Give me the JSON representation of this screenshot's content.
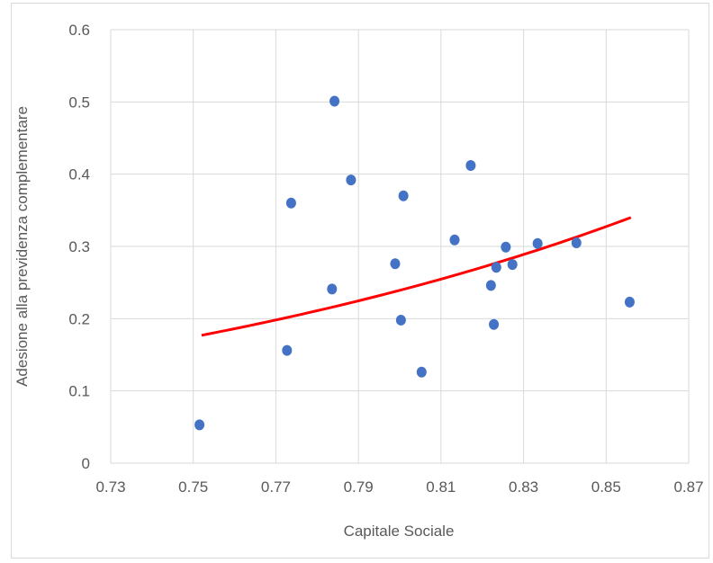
{
  "chart_data": {
    "type": "scatter",
    "xlabel": "Capitale Sociale",
    "ylabel": "Adesione alla previdenza complementare",
    "xlim": [
      0.73,
      0.87
    ],
    "ylim": [
      0,
      0.6
    ],
    "x_ticks": [
      "0.73",
      "0.75",
      "0.77",
      "0.79",
      "0.81",
      "0.83",
      "0.85",
      "0.87"
    ],
    "y_ticks": [
      "0",
      "0.1",
      "0.2",
      "0.3",
      "0.4",
      "0.5",
      "0.6"
    ],
    "grid": "horizontal and vertical",
    "legend": "none",
    "colors": {
      "points": "#4472c4",
      "trendline": "#ff0000",
      "grid": "#d9d9d9",
      "text": "#595959"
    },
    "series": [
      {
        "points": [
          {
            "x": 0.7515,
            "y": 0.053
          },
          {
            "x": 0.7727,
            "y": 0.156
          },
          {
            "x": 0.7737,
            "y": 0.36
          },
          {
            "x": 0.7836,
            "y": 0.241
          },
          {
            "x": 0.7842,
            "y": 0.501
          },
          {
            "x": 0.7882,
            "y": 0.392
          },
          {
            "x": 0.7989,
            "y": 0.276
          },
          {
            "x": 0.8003,
            "y": 0.198
          },
          {
            "x": 0.8009,
            "y": 0.37
          },
          {
            "x": 0.8053,
            "y": 0.126
          },
          {
            "x": 0.8133,
            "y": 0.309
          },
          {
            "x": 0.8172,
            "y": 0.412
          },
          {
            "x": 0.8221,
            "y": 0.246
          },
          {
            "x": 0.8228,
            "y": 0.192
          },
          {
            "x": 0.8234,
            "y": 0.271
          },
          {
            "x": 0.8257,
            "y": 0.299
          },
          {
            "x": 0.8273,
            "y": 0.275
          },
          {
            "x": 0.8334,
            "y": 0.304
          },
          {
            "x": 0.8428,
            "y": 0.305
          },
          {
            "x": 0.8557,
            "y": 0.223
          }
        ]
      }
    ],
    "trendline": {
      "type": "exponential",
      "x_range": [
        0.752,
        0.856
      ],
      "y_at_start": 0.177,
      "y_at_end": 0.34
    }
  }
}
